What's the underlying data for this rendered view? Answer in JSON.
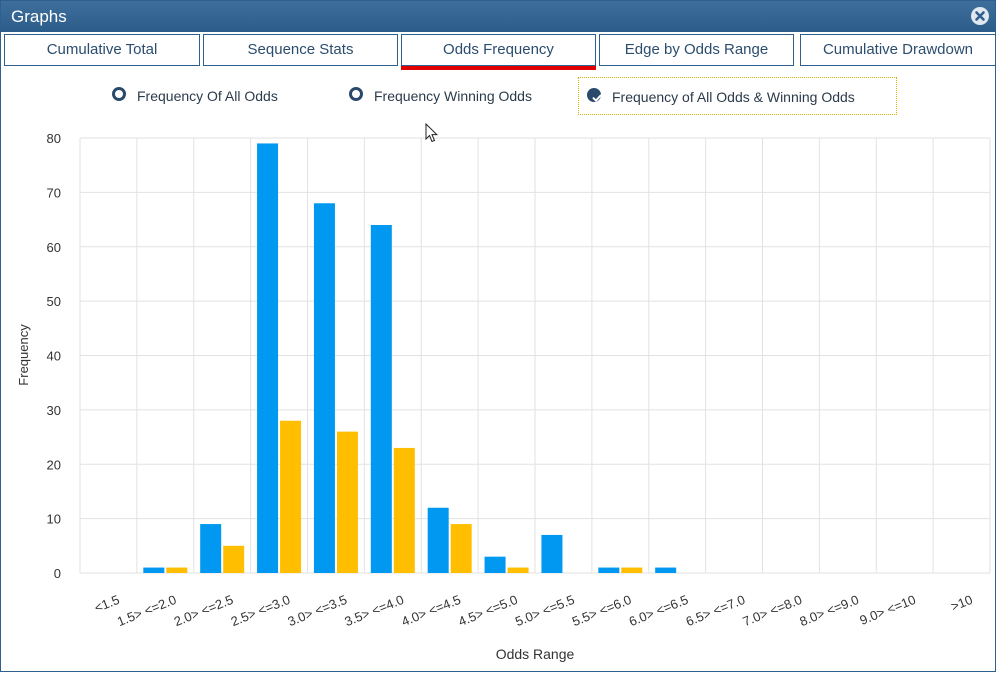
{
  "window": {
    "title": "Graphs"
  },
  "tabs": [
    {
      "label": "Cumulative Total"
    },
    {
      "label": "Sequence Stats"
    },
    {
      "label": "Odds Frequency"
    },
    {
      "label": "Edge by Odds Range"
    },
    {
      "label": "Cumulative Drawdown"
    }
  ],
  "active_tab": "Odds Frequency",
  "options": [
    {
      "label": "Frequency Of All Odds",
      "checked": false
    },
    {
      "label": "Frequency Winning Odds",
      "checked": false
    },
    {
      "label": "Frequency of All Odds & Winning Odds",
      "checked": true
    }
  ],
  "colors": {
    "all_odds": "#0098f0",
    "winning_odds": "#ffbf00",
    "titlebar": "#2f5f8c",
    "tab_indicator": "#e00000"
  },
  "icons": {
    "close": "close-circle-icon",
    "radio": "radio-icon",
    "check": "check-icon",
    "cursor": "mouse-pointer-icon"
  },
  "chart_data": {
    "type": "bar",
    "xlabel": "Odds Range",
    "ylabel": "Frequency",
    "ylim": [
      0,
      80
    ],
    "yticks": [
      0,
      10,
      20,
      30,
      40,
      50,
      60,
      70,
      80
    ],
    "grid": true,
    "categories": [
      "<1.5",
      "1.5> <=2.0",
      "2.0> <=2.5",
      "2.5> <=3.0",
      "3.0> <=3.5",
      "3.5> <=4.0",
      "4.0> <=4.5",
      "4.5> <=5.0",
      "5.0> <=5.5",
      "5.5> <=6.0",
      "6.0> <=6.5",
      "6.5> <=7.0",
      "7.0> <=8.0",
      "8.0> <=9.0",
      "9.0> <=10",
      ">10"
    ],
    "series": [
      {
        "values": [
          0,
          1,
          9,
          79,
          68,
          64,
          12,
          3,
          7,
          1,
          1,
          0,
          0,
          0,
          0,
          0
        ]
      },
      {
        "values": [
          0,
          1,
          5,
          28,
          26,
          23,
          9,
          1,
          0,
          1,
          0,
          0,
          0,
          0,
          0,
          0
        ]
      }
    ]
  }
}
